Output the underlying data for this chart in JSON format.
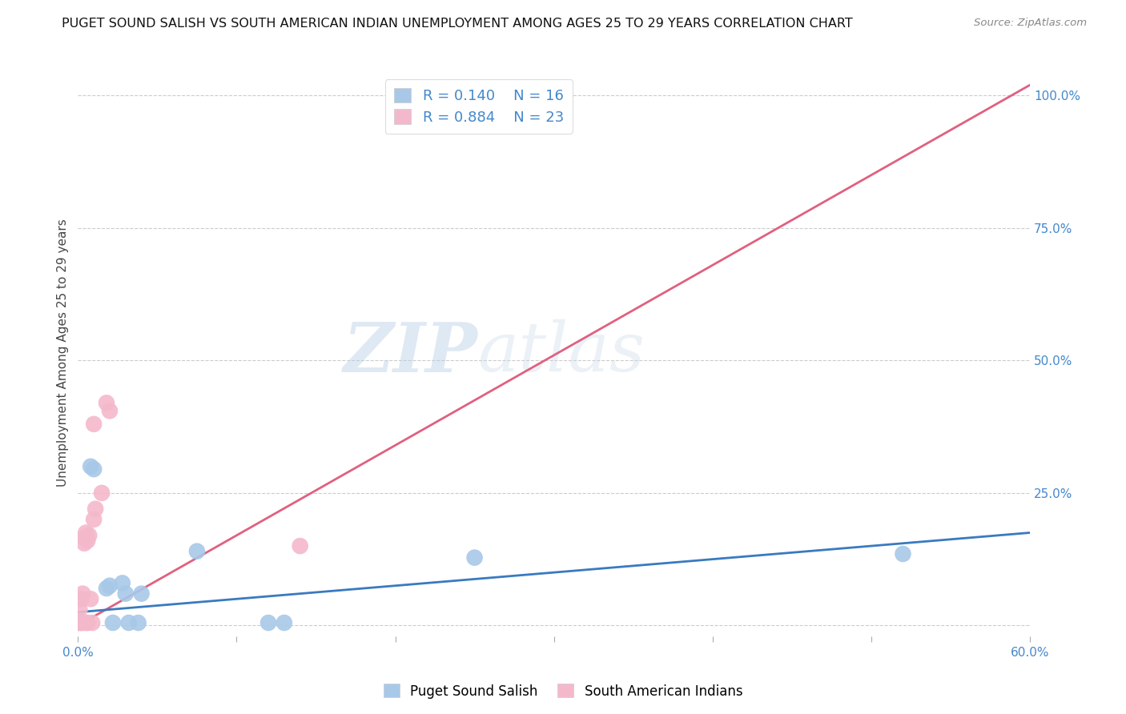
{
  "title": "PUGET SOUND SALISH VS SOUTH AMERICAN INDIAN UNEMPLOYMENT AMONG AGES 25 TO 29 YEARS CORRELATION CHART",
  "source": "Source: ZipAtlas.com",
  "ylabel": "Unemployment Among Ages 25 to 29 years",
  "xlim": [
    0.0,
    0.6
  ],
  "ylim": [
    -0.02,
    1.05
  ],
  "xticks": [
    0.0,
    0.1,
    0.2,
    0.3,
    0.4,
    0.5,
    0.6
  ],
  "xticklabels": [
    "0.0%",
    "",
    "",
    "",
    "",
    "",
    "60.0%"
  ],
  "yticks_right": [
    0.0,
    0.25,
    0.5,
    0.75,
    1.0
  ],
  "yticklabels_right": [
    "",
    "25.0%",
    "50.0%",
    "75.0%",
    "100.0%"
  ],
  "blue_color": "#a8c8e8",
  "pink_color": "#f4b8cb",
  "blue_line_color": "#3a7abf",
  "pink_line_color": "#e06080",
  "tick_label_color": "#4488cc",
  "R_blue": 0.14,
  "N_blue": 16,
  "R_pink": 0.884,
  "N_pink": 23,
  "watermark_zip": "ZIP",
  "watermark_atlas": "atlas",
  "grid_color": "#cccccc",
  "bg_color": "#ffffff",
  "title_fontsize": 11.5,
  "axis_label_fontsize": 11,
  "tick_fontsize": 11,
  "blue_points_x": [
    0.0,
    0.008,
    0.01,
    0.018,
    0.02,
    0.022,
    0.028,
    0.03,
    0.032,
    0.038,
    0.04,
    0.075,
    0.12,
    0.13,
    0.25,
    0.52
  ],
  "blue_points_y": [
    0.01,
    0.3,
    0.295,
    0.07,
    0.075,
    0.005,
    0.08,
    0.06,
    0.005,
    0.005,
    0.06,
    0.14,
    0.005,
    0.005,
    0.128,
    0.135
  ],
  "pink_points_x": [
    0.0,
    0.001,
    0.001,
    0.002,
    0.002,
    0.003,
    0.003,
    0.004,
    0.004,
    0.005,
    0.005,
    0.006,
    0.006,
    0.007,
    0.008,
    0.009,
    0.01,
    0.01,
    0.011,
    0.015,
    0.018,
    0.02,
    0.14
  ],
  "pink_points_y": [
    0.005,
    0.005,
    0.03,
    0.005,
    0.05,
    0.005,
    0.06,
    0.155,
    0.165,
    0.175,
    0.005,
    0.005,
    0.16,
    0.17,
    0.05,
    0.005,
    0.2,
    0.38,
    0.22,
    0.25,
    0.42,
    0.405,
    0.15
  ],
  "pink_trend_x": [
    0.0,
    0.6
  ],
  "pink_trend_y": [
    0.0,
    1.02
  ],
  "blue_trend_x": [
    0.0,
    0.6
  ],
  "blue_trend_y": [
    0.025,
    0.175
  ]
}
